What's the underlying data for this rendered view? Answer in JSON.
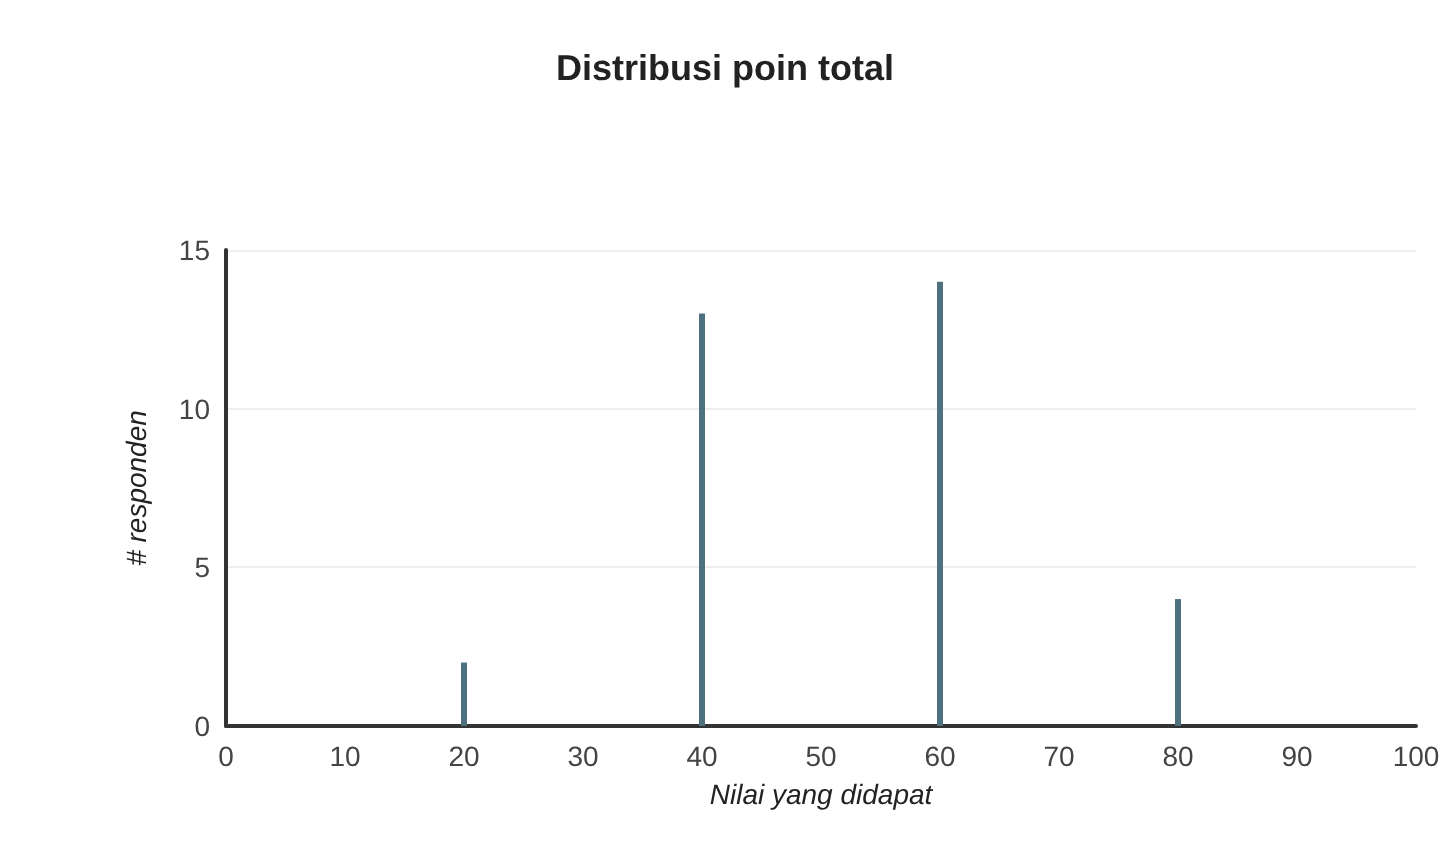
{
  "chart_data": {
    "type": "bar",
    "title": "Distribusi poin total",
    "xlabel": "Nilai yang didapat",
    "ylabel": "# responden",
    "x": [
      20,
      40,
      60,
      80
    ],
    "values": [
      2,
      13,
      14,
      4
    ],
    "color": "#4e7180",
    "xlim": [
      0,
      100
    ],
    "xticks": [
      0,
      10,
      20,
      30,
      40,
      50,
      60,
      70,
      80,
      90,
      100
    ],
    "ylim": [
      0,
      15
    ],
    "yticks": [
      0,
      5,
      10,
      15
    ],
    "grid": "y"
  }
}
